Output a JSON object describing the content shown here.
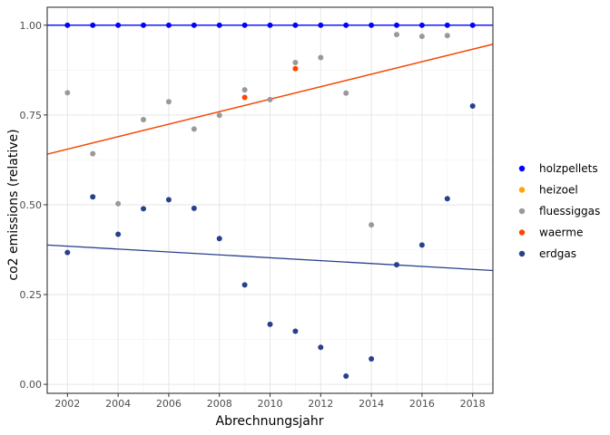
{
  "chart_data": {
    "type": "scatter",
    "xlabel": "Abrechnungsjahr",
    "ylabel": "co2 emissions (relative)",
    "xlim": [
      2001.2,
      2018.8
    ],
    "ylim": [
      -0.025,
      1.05
    ],
    "xticks": [
      2002,
      2004,
      2006,
      2008,
      2010,
      2012,
      2014,
      2016,
      2018
    ],
    "yticks": [
      0.0,
      0.25,
      0.5,
      0.75,
      1.0
    ],
    "ytick_labels": [
      "0.00",
      "0.25",
      "0.50",
      "0.75",
      "1.00"
    ],
    "grid": true,
    "legend_position": "right",
    "series": [
      {
        "name": "holzpellets",
        "color": "#0000ff",
        "points": [
          [
            2002,
            1.0
          ],
          [
            2003,
            1.0
          ],
          [
            2004,
            1.0
          ],
          [
            2005,
            1.0
          ],
          [
            2006,
            1.0
          ],
          [
            2007,
            1.0
          ],
          [
            2008,
            1.0
          ],
          [
            2009,
            1.0
          ],
          [
            2010,
            1.0
          ],
          [
            2011,
            1.0
          ],
          [
            2012,
            1.0
          ],
          [
            2013,
            1.0
          ],
          [
            2014,
            1.0
          ],
          [
            2015,
            1.0
          ],
          [
            2016,
            1.0
          ],
          [
            2017,
            1.0
          ],
          [
            2018,
            1.0
          ]
        ],
        "trend": [
          [
            2001.2,
            1.0
          ],
          [
            2018.8,
            1.0
          ]
        ]
      },
      {
        "name": "heizoel",
        "color": "#ffa500",
        "points": [],
        "trend": [
          [
            2001.2,
            0.641
          ],
          [
            2018.8,
            0.947
          ]
        ]
      },
      {
        "name": "fluessiggas",
        "color": "#999999",
        "points": [
          [
            2002,
            0.812
          ],
          [
            2003,
            0.642
          ],
          [
            2004,
            0.503
          ],
          [
            2005,
            0.737
          ],
          [
            2006,
            0.787
          ],
          [
            2007,
            0.711
          ],
          [
            2008,
            0.749
          ],
          [
            2009,
            0.82
          ],
          [
            2010,
            0.793
          ],
          [
            2011,
            0.896
          ],
          [
            2012,
            0.91
          ],
          [
            2013,
            0.811
          ],
          [
            2014,
            0.444
          ],
          [
            2015,
            0.974
          ],
          [
            2016,
            0.969
          ],
          [
            2017,
            0.971
          ]
        ],
        "trend": [
          [
            2001.2,
            0.641
          ],
          [
            2018.8,
            0.947
          ]
        ]
      },
      {
        "name": "waerme",
        "color": "#ff4500",
        "points": [
          [
            2009,
            0.799
          ],
          [
            2011,
            0.879
          ]
        ],
        "trend": [
          [
            2001.2,
            0.641
          ],
          [
            2018.8,
            0.947
          ]
        ]
      },
      {
        "name": "erdgas",
        "color": "#27408b",
        "points": [
          [
            2002,
            0.367
          ],
          [
            2003,
            0.522
          ],
          [
            2004,
            0.418
          ],
          [
            2005,
            0.489
          ],
          [
            2006,
            0.514
          ],
          [
            2007,
            0.49
          ],
          [
            2008,
            0.406
          ],
          [
            2009,
            0.277
          ],
          [
            2010,
            0.167
          ],
          [
            2011,
            0.148
          ],
          [
            2012,
            0.103
          ],
          [
            2013,
            0.023
          ],
          [
            2014,
            0.071
          ],
          [
            2015,
            0.333
          ],
          [
            2016,
            0.388
          ],
          [
            2017,
            0.517
          ],
          [
            2018,
            0.775
          ]
        ],
        "trend": [
          [
            2001.2,
            0.388
          ],
          [
            2018.8,
            0.317
          ]
        ]
      }
    ]
  }
}
